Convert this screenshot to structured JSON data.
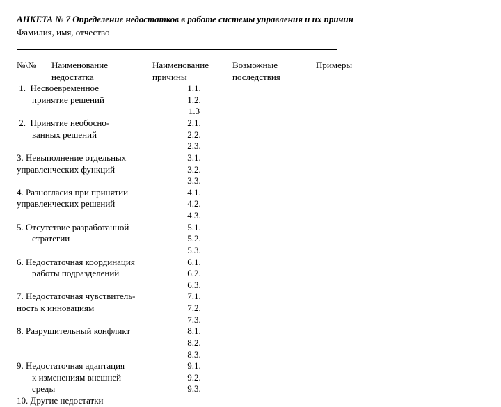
{
  "title_prefix": "АНКЕТА № 7  ",
  "title_main": "Определение недостатков в работе системы управления и их причин",
  "fio_label": "Фамилия, имя, отчество ",
  "headers": {
    "col1": "№\\№",
    "col2a": "Наименование",
    "col2b": "недостатка",
    "col3a": "Наименование",
    "col3b": "причины",
    "col4a": "Возможные",
    "col4b": "последствия",
    "col5": "Примеры"
  },
  "items": [
    {
      "n": "1.",
      "l1": "Несвоевременное",
      "l2": "принятие решений",
      "s": [
        "1.1.",
        "1.2.",
        "1.3"
      ]
    },
    {
      "n": "2.",
      "l1": "Принятие необосно-",
      "l2": "ванных решений",
      "s": [
        "2.1.",
        "2.2.",
        "2.3."
      ]
    },
    {
      "n": "3.",
      "l1": "Невыполнение отдельных",
      "l2": "управленческих функций",
      "s": [
        "3.1.",
        "3.2.",
        "3.3."
      ]
    },
    {
      "n": "4.",
      "l1": "Разногласия при принятии",
      "l2": "управленческих решений",
      "s": [
        "4.1.",
        "4.2.",
        "4.3."
      ]
    },
    {
      "n": "5.",
      "l1": "Отсутствие разработанной",
      "l2": "стратегии",
      "pad": "indent-mid",
      "s": [
        "5.1.",
        "5.2.",
        "5.3."
      ]
    },
    {
      "n": "6.",
      "l1": "Недостаточная координация",
      "l2": "работы подразделений",
      "pad": "indent-mid",
      "s": [
        "6.1.",
        "6.2.",
        "6.3."
      ]
    },
    {
      "n": "7.",
      "l1": "Недостаточная чувствитель-",
      "l2": "ность к инновациям",
      "pad2": "indent-none",
      "s": [
        "7.1.",
        "7.2.",
        "7.3."
      ]
    },
    {
      "n": "8.",
      "l1": "Разрушительный конфликт",
      "l2": "",
      "s": [
        "8.1.",
        "8.2.",
        "8.3."
      ]
    },
    {
      "n": "9.",
      "l1": "Недостаточная адаптация",
      "l2": "к изменениям внешней",
      "l3": "среды",
      "pad": "indent-mid",
      "s": [
        "9.1.",
        "9.2.",
        "9.3."
      ]
    },
    {
      "n": "10.",
      "l1": "Другие недостатки",
      "l2": "",
      "s": []
    }
  ]
}
